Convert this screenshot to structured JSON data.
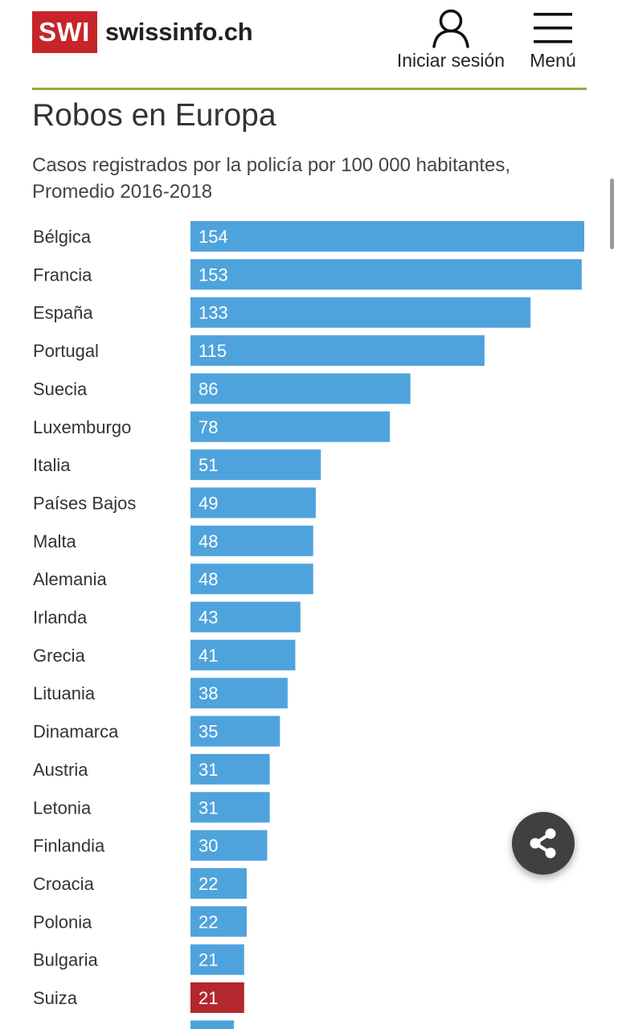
{
  "header": {
    "logo_badge": "SWI",
    "logo_text": "swissinfo.ch",
    "login_label": "Iniciar sesión",
    "menu_label": "Menú",
    "accent_color": "#8fae3c",
    "brand_color": "#c7252a"
  },
  "icons": {
    "login": "user-icon",
    "menu": "hamburger-menu-icon",
    "share": "share-icon"
  },
  "chart_data": {
    "type": "bar",
    "orientation": "horizontal",
    "title": "Robos en Europa",
    "subtitle": "Casos registrados por la policía por 100 000 habitantes, Promedio 2016-2018",
    "categories": [
      "Bélgica",
      "Francia",
      "España",
      "Portugal",
      "Suecia",
      "Luxemburgo",
      "Italia",
      "Países Bajos",
      "Malta",
      "Alemania",
      "Irlanda",
      "Grecia",
      "Lituania",
      "Dinamarca",
      "Austria",
      "Letonia",
      "Finlandia",
      "Croacia",
      "Polonia",
      "Bulgaria",
      "Suiza"
    ],
    "values": [
      154,
      153,
      133,
      115,
      86,
      78,
      51,
      49,
      48,
      48,
      43,
      41,
      38,
      35,
      31,
      31,
      30,
      22,
      22,
      21,
      21
    ],
    "highlight": "Suiza",
    "bar_color": "#4fa3dc",
    "highlight_color": "#b3282d",
    "partial_next_value": 17,
    "xlim": [
      0,
      154
    ],
    "grid": false,
    "legend": "none"
  }
}
